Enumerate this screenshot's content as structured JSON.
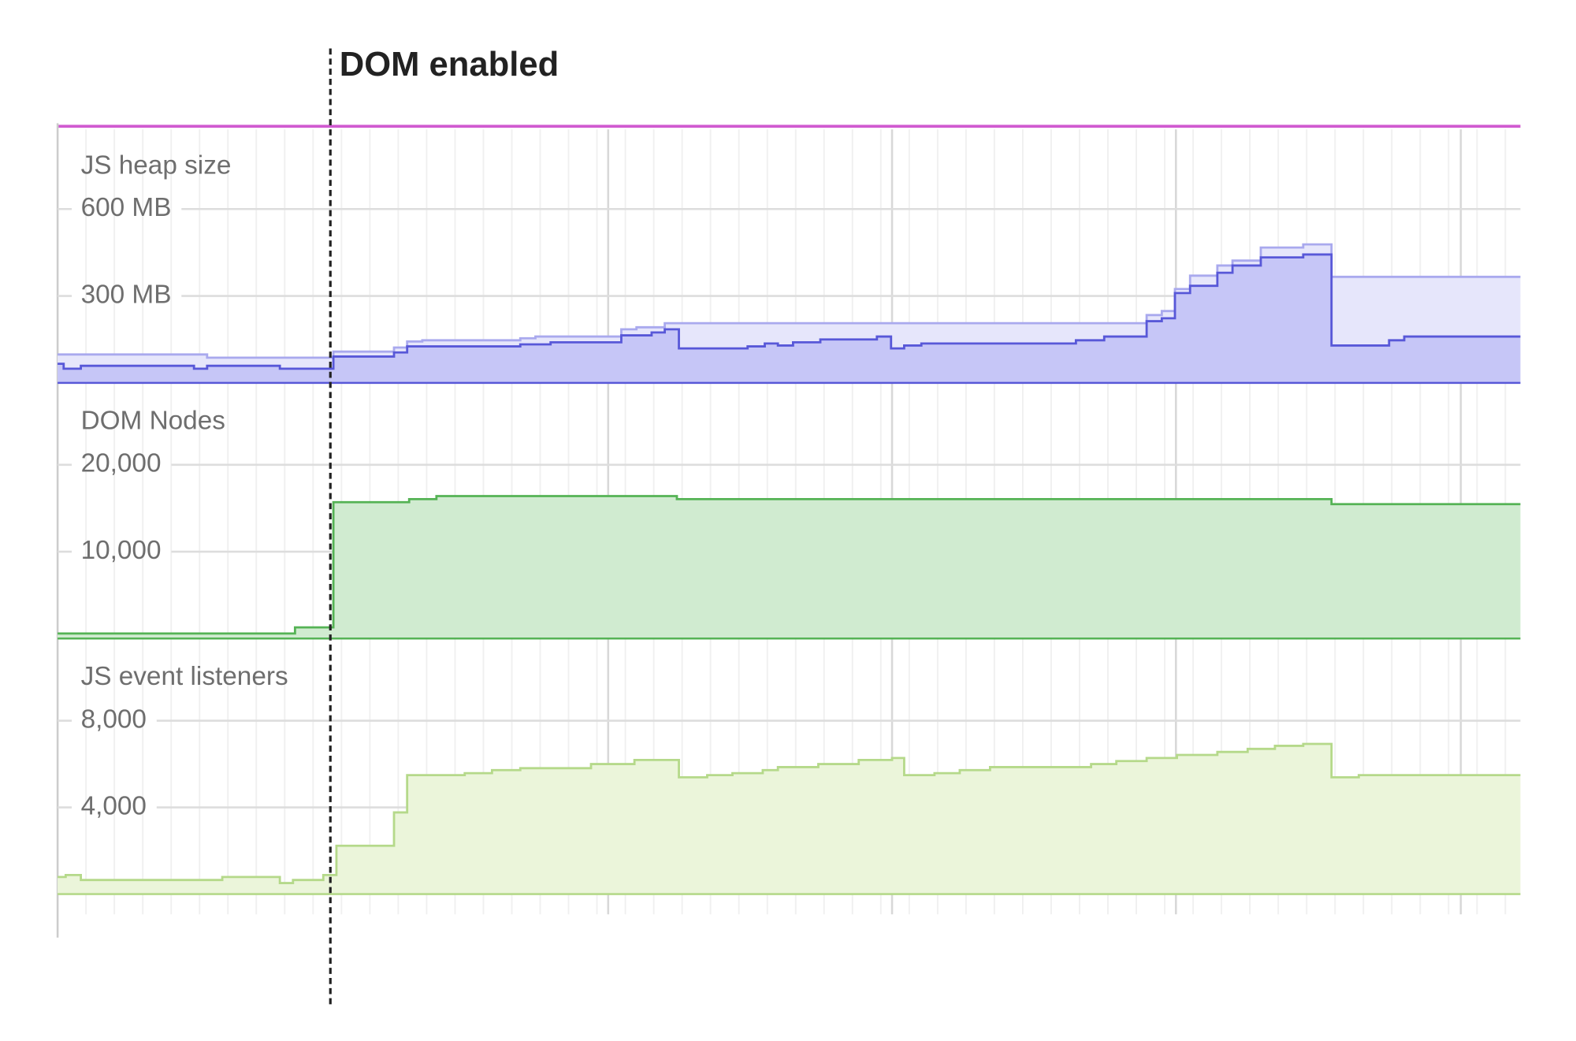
{
  "annotation": "DOM enabled",
  "chart_data": [
    {
      "type": "step-area",
      "title": "JS heap size",
      "xlim": [
        0,
        1448
      ],
      "ylim": [
        0,
        875
      ],
      "yticks": [
        {
          "value": 600,
          "label": "600 MB"
        },
        {
          "value": 300,
          "label": "300 MB"
        }
      ],
      "series": [
        {
          "color": "#a9a9ee",
          "fill": "#e6e6fb",
          "x": [
            0,
            148,
            273,
            333,
            346,
            361,
            458,
            473,
            558,
            573,
            601,
            1078,
            1093,
            1106,
            1121,
            1148,
            1163,
            1191,
            1233,
            1261
          ],
          "values": [
            98,
            87,
            108,
            122,
            143,
            147,
            154,
            160,
            185,
            192,
            206,
            234,
            248,
            324,
            370,
            405,
            422,
            467,
            478,
            366
          ]
        },
        {
          "color": "#5858d8",
          "fill": "#c6c6f7",
          "x": [
            0,
            6,
            23,
            135,
            148,
            220,
            273,
            333,
            346,
            458,
            488,
            558,
            588,
            601,
            615,
            683,
            700,
            713,
            728,
            755,
            811,
            825,
            838,
            855,
            1008,
            1036,
            1078,
            1093,
            1106,
            1121,
            1148,
            1163,
            1191,
            1233,
            1261,
            1318,
            1333
          ],
          "values": [
            66,
            49,
            59,
            49,
            59,
            49,
            91,
            105,
            126,
            133,
            140,
            164,
            174,
            185,
            119,
            126,
            136,
            129,
            140,
            150,
            160,
            119,
            129,
            136,
            147,
            160,
            213,
            223,
            310,
            335,
            380,
            405,
            433,
            443,
            129,
            147,
            160
          ]
        }
      ]
    },
    {
      "type": "step-area",
      "title": "DOM Nodes",
      "xlim": [
        0,
        1448
      ],
      "ylim": [
        0,
        29200
      ],
      "yticks": [
        {
          "value": 20000,
          "label": "20,000"
        },
        {
          "value": 10000,
          "label": "10,000"
        }
      ],
      "series": [
        {
          "color": "#55b355",
          "fill": "#d0ebd0",
          "x": [
            0,
            235,
            273,
            348,
            375,
            613,
            1261
          ],
          "values": [
            580,
            1280,
            15700,
            16050,
            16400,
            16050,
            15470
          ]
        }
      ]
    },
    {
      "type": "step-area",
      "title": "JS event listeners",
      "xlim": [
        0,
        1448
      ],
      "ylim": [
        0,
        11700
      ],
      "yticks": [
        {
          "value": 8000,
          "label": "8,000"
        },
        {
          "value": 4000,
          "label": "4,000"
        }
      ],
      "series": [
        {
          "color": "#b5d98a",
          "fill": "#ebf5da",
          "x": [
            0,
            8,
            23,
            163,
            220,
            233,
            263,
            276,
            333,
            346,
            403,
            430,
            458,
            528,
            571,
            615,
            643,
            668,
            698,
            713,
            753,
            793,
            826,
            838,
            868,
            893,
            923,
            1023,
            1048,
            1078,
            1108,
            1148,
            1178,
            1205,
            1233,
            1261,
            1288
          ],
          "values": [
            790,
            880,
            650,
            790,
            510,
            650,
            880,
            2230,
            3770,
            5490,
            5580,
            5720,
            5810,
            6000,
            6190,
            5390,
            5490,
            5580,
            5720,
            5860,
            6000,
            6190,
            6280,
            5490,
            5580,
            5720,
            5860,
            6000,
            6140,
            6280,
            6420,
            6560,
            6700,
            6840,
            6930,
            5390,
            5490
          ]
        }
      ]
    }
  ]
}
